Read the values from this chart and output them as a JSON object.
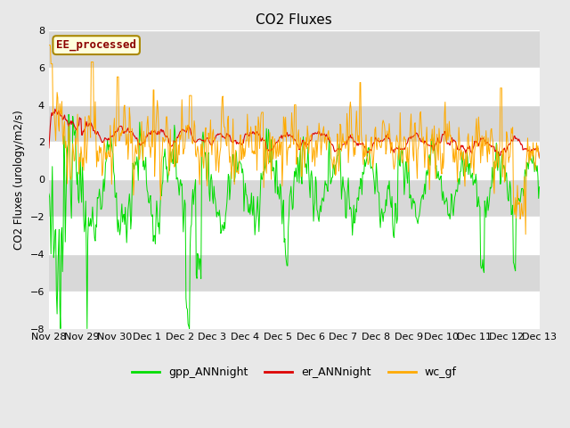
{
  "title": "CO2 Fluxes",
  "ylabel": "CO2 Fluxes (urology/m2/s)",
  "ylim": [
    -8,
    8
  ],
  "yticks": [
    -8,
    -6,
    -4,
    -2,
    0,
    2,
    4,
    6,
    8
  ],
  "background_color": "#e8e8e8",
  "plot_bg_color": "#e8e8e8",
  "grid_color": "white",
  "annotation_text": "EE_processed",
  "annotation_color": "#8b0000",
  "annotation_bg": "#ffffdd",
  "annotation_border": "#aa8800",
  "line_colors": {
    "gpp": "#00dd00",
    "er": "#dd0000",
    "wc": "#ffaa00"
  },
  "legend_labels": [
    "gpp_ANNnight",
    "er_ANNnight",
    "wc_gf"
  ],
  "x_tick_labels": [
    "Nov 28",
    "Nov 29",
    "Nov 30",
    "Dec 1",
    "Dec 2",
    "Dec 3",
    "Dec 4",
    "Dec 5",
    "Dec 6",
    "Dec 7",
    "Dec 8",
    "Dec 9",
    "Dec 10",
    "Dec 11",
    "Dec 12",
    "Dec 13"
  ],
  "n_points": 720,
  "seed": 12345
}
